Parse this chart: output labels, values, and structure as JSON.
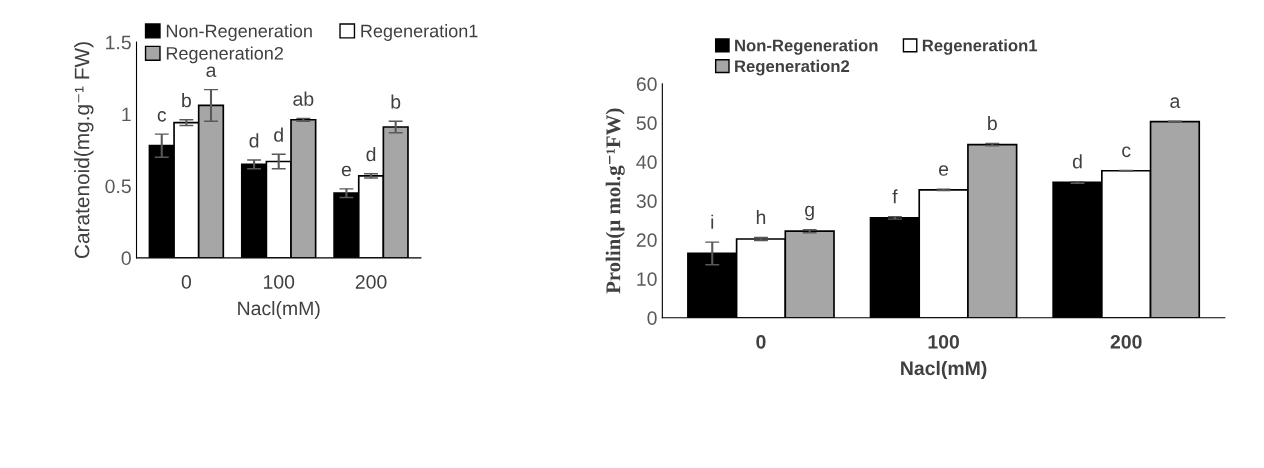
{
  "chart_data": [
    {
      "type": "bar",
      "xlabel": "Nacl(mM)",
      "ylabel": "Caratenoid(mg.g⁻¹ FW)",
      "categories": [
        "0",
        "100",
        "200"
      ],
      "series": [
        {
          "name": "Non-Regeneration",
          "color": "#000000",
          "values": [
            0.78,
            0.65,
            0.45
          ],
          "errors": [
            0.08,
            0.03,
            0.03
          ]
        },
        {
          "name": "Regeneration1",
          "color": "#ffffff",
          "values": [
            0.94,
            0.67,
            0.57
          ],
          "errors": [
            0.02,
            0.05,
            0.015
          ]
        },
        {
          "name": "Regeneration2",
          "color": "#a6a6a6",
          "values": [
            1.06,
            0.96,
            0.91
          ],
          "errors": [
            0.11,
            0.01,
            0.04
          ]
        }
      ],
      "ylim": [
        0,
        1.5
      ],
      "yticks": [
        0,
        0.5,
        1,
        1.5
      ],
      "legend": "top",
      "grid": false,
      "annotations": [
        "c",
        "b",
        "a",
        "d",
        "d",
        "ab",
        "e",
        "d",
        "b"
      ]
    },
    {
      "type": "bar",
      "xlabel": "Nacl(mM)",
      "ylabel": "Prolin(µ mol.g⁻¹FW)",
      "categories": [
        "0",
        "100",
        "200"
      ],
      "series": [
        {
          "name": "Non-Regeneration",
          "color": "#000000",
          "values": [
            16.5,
            25.6,
            34.7
          ],
          "errors": [
            2.9,
            0.3,
            0.2
          ]
        },
        {
          "name": "Regeneration1",
          "color": "#ffffff",
          "values": [
            20.2,
            32.8,
            37.7
          ],
          "errors": [
            0.4,
            0.2,
            0.1
          ]
        },
        {
          "name": "Regeneration2",
          "color": "#a6a6a6",
          "values": [
            22.2,
            44.4,
            50.3
          ],
          "errors": [
            0.4,
            0.3,
            0.1
          ]
        }
      ],
      "ylim": [
        0,
        60
      ],
      "yticks": [
        0,
        10,
        20,
        30,
        40,
        50,
        60
      ],
      "legend": "top",
      "grid": false,
      "annotations": [
        "i",
        "h",
        "g",
        "f",
        "e",
        "b",
        "d",
        "c",
        "a"
      ]
    }
  ]
}
